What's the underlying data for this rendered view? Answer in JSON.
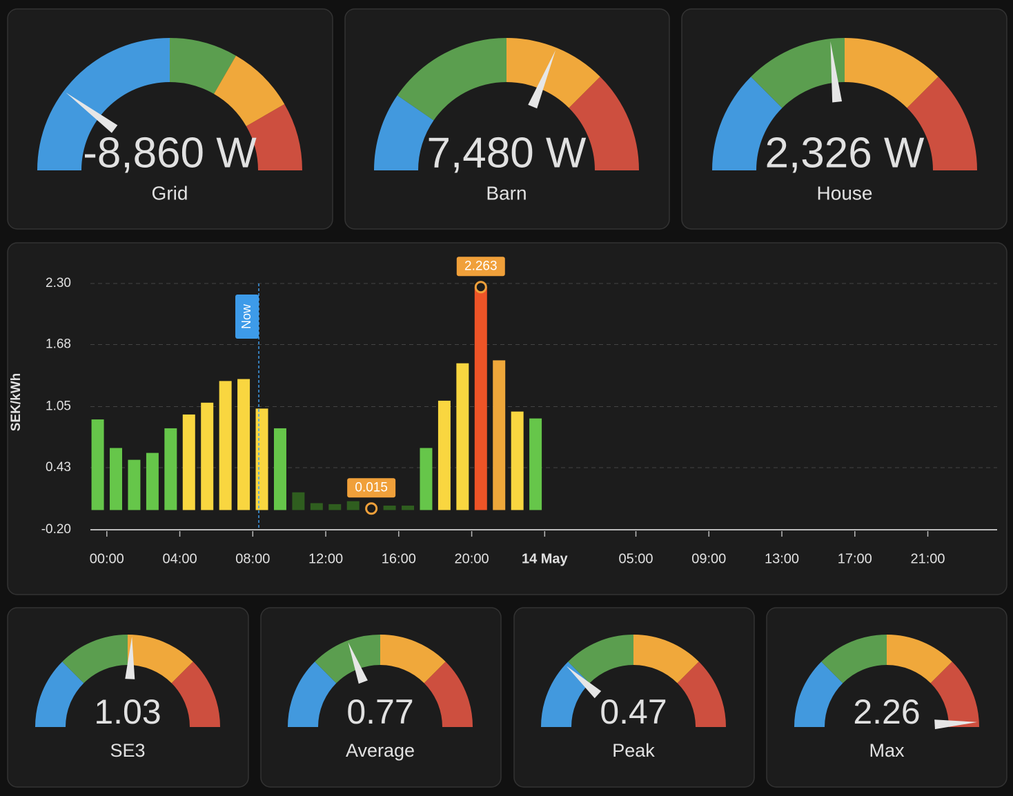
{
  "gauge_colors": [
    "#4299de",
    "#5b9e4f",
    "#f0a83b",
    "#cd4f3f"
  ],
  "top_gauges": [
    {
      "name": "Grid",
      "value": -8860,
      "value_label": "-8,860 W",
      "min": -15000,
      "max": 15000,
      "thresholds": [
        0,
        5000,
        10000
      ]
    },
    {
      "name": "Barn",
      "value": 7480,
      "value_label": "7,480 W",
      "min": 0,
      "max": 12000,
      "thresholds": [
        2300,
        6000,
        9000
      ]
    },
    {
      "name": "House",
      "value": 2326,
      "value_label": "2,326 W",
      "min": 0,
      "max": 5000,
      "thresholds": [
        1250,
        2500,
        3750
      ]
    }
  ],
  "bottom_gauges": [
    {
      "name": "SE3",
      "value": 1.03,
      "min": 0,
      "max": 2,
      "thresholds": [
        0.5,
        1,
        1.5
      ]
    },
    {
      "name": "Average",
      "value": 0.77,
      "min": 0,
      "max": 2,
      "thresholds": [
        0.5,
        1,
        1.5
      ]
    },
    {
      "name": "Peak",
      "value": 0.47,
      "min": 0,
      "max": 2,
      "thresholds": [
        0.5,
        1,
        1.5
      ]
    },
    {
      "name": "Max",
      "value": 2.26,
      "min": 0,
      "max": 2.3,
      "thresholds": [
        0.575,
        1.15,
        1.725
      ]
    }
  ],
  "chart_data": {
    "type": "bar",
    "y_label": "SEK/kWh",
    "x": [
      -0.5,
      0.5,
      1.5,
      2.5,
      3.5,
      4.5,
      5.5,
      6.5,
      7.5,
      8.5,
      9.5,
      10.5,
      11.5,
      12.5,
      13.5,
      14.5,
      15.5,
      16.5,
      17.5,
      18.5,
      19.5,
      20.5,
      21.5,
      22.5,
      23.5
    ],
    "values": [
      0.92,
      0.63,
      0.51,
      0.58,
      0.83,
      0.97,
      1.09,
      1.31,
      1.33,
      1.03,
      0.83,
      0.18,
      0.07,
      0.06,
      0.09,
      0.015,
      0.045,
      0.045,
      0.63,
      1.11,
      1.49,
      2.263,
      1.52,
      1.0,
      0.93
    ],
    "colors": [
      "#66c64a",
      "#66c64a",
      "#66c64a",
      "#66c64a",
      "#66c64a",
      "#f9d640",
      "#f9d640",
      "#f9d640",
      "#f9d640",
      "#f9d640",
      "#66c64a",
      "#2f5e1f",
      "#2f5e1f",
      "#2f5e1f",
      "#2f5e1f",
      "#2f5e1f",
      "#2f5e1f",
      "#2f5e1f",
      "#66c64a",
      "#f9d640",
      "#f9d640",
      "#ee5427",
      "#eea73a",
      "#f9d640",
      "#66c64a"
    ],
    "xlim": [
      -0.9,
      48.8
    ],
    "xticks": [
      {
        "value": 0,
        "label": "00:00"
      },
      {
        "value": 4,
        "label": "04:00"
      },
      {
        "value": 8,
        "label": "08:00"
      },
      {
        "value": 12,
        "label": "12:00"
      },
      {
        "value": 16,
        "label": "16:00"
      },
      {
        "value": 20,
        "label": "20:00"
      },
      {
        "value": 24,
        "label": "14 May",
        "bold": true
      },
      {
        "value": 29,
        "label": "05:00"
      },
      {
        "value": 33,
        "label": "09:00"
      },
      {
        "value": 37,
        "label": "13:00"
      },
      {
        "value": 41,
        "label": "17:00"
      },
      {
        "value": 45,
        "label": "21:00"
      }
    ],
    "ylim": [
      -0.2,
      2.3
    ],
    "yticks": [
      {
        "value": -0.2,
        "label": "-0.20"
      },
      {
        "value": 0.43,
        "label": "0.43"
      },
      {
        "value": 1.05,
        "label": "1.05"
      },
      {
        "value": 1.68,
        "label": "1.68"
      },
      {
        "value": 2.3,
        "label": "2.30"
      }
    ],
    "grid": true,
    "annotations": [
      {
        "x": 8.33,
        "label": "Now",
        "color": "#3d9be9"
      }
    ],
    "highlight_color": "#f0a03a"
  }
}
